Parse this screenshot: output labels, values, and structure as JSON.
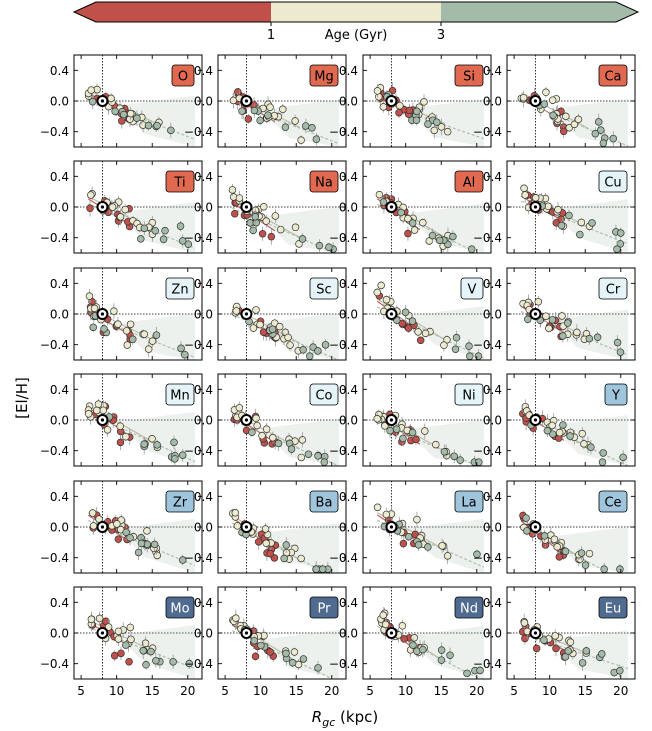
{
  "colorbar": {
    "label": "Age (Gyr)",
    "ticks": [
      "1",
      "3"
    ],
    "segments": [
      {
        "range": "< 1",
        "color": "#c0504a"
      },
      {
        "range": "1 - 3",
        "color": "#eceacf"
      },
      {
        "range": "> 3",
        "color": "#a4bba9"
      }
    ]
  },
  "xlabel": "R_gc (kpc)",
  "ylabel": "[El/H]",
  "chart_data": {
    "type": "scatter",
    "layout": "6 rows x 4 columns small multiples",
    "xlabel": "Rgc (kpc)",
    "ylabel": "[El/H]",
    "xlim": [
      4,
      22
    ],
    "ylim": [
      -0.6,
      0.6
    ],
    "xticks": [
      5,
      10,
      15,
      20
    ],
    "yticks": [
      0.4,
      0.0,
      -0.4
    ],
    "ytick_labels": [
      "0.4",
      "0.0",
      "−0.4"
    ],
    "solar_reference": {
      "Rgc": 8.0,
      "El_H": 0.0
    },
    "panels": [
      {
        "element": "O",
        "color": "#e0694f",
        "text_color": "#000000"
      },
      {
        "element": "Mg",
        "color": "#e0694f",
        "text_color": "#000000"
      },
      {
        "element": "Si",
        "color": "#e0694f",
        "text_color": "#000000"
      },
      {
        "element": "Ca",
        "color": "#e0694f",
        "text_color": "#000000"
      },
      {
        "element": "Ti",
        "color": "#e0694f",
        "text_color": "#000000"
      },
      {
        "element": "Na",
        "color": "#e0694f",
        "text_color": "#000000"
      },
      {
        "element": "Al",
        "color": "#e0694f",
        "text_color": "#000000"
      },
      {
        "element": "Cu",
        "color": "#e4f4f8",
        "text_color": "#000000"
      },
      {
        "element": "Zn",
        "color": "#e4f4f8",
        "text_color": "#000000"
      },
      {
        "element": "Sc",
        "color": "#e4f4f8",
        "text_color": "#000000"
      },
      {
        "element": "V",
        "color": "#e4f4f8",
        "text_color": "#000000"
      },
      {
        "element": "Cr",
        "color": "#e4f4f8",
        "text_color": "#000000"
      },
      {
        "element": "Mn",
        "color": "#e4f4f8",
        "text_color": "#000000"
      },
      {
        "element": "Co",
        "color": "#e4f4f8",
        "text_color": "#000000"
      },
      {
        "element": "Ni",
        "color": "#e4f4f8",
        "text_color": "#000000"
      },
      {
        "element": "Y",
        "color": "#9ec5dc",
        "text_color": "#000000"
      },
      {
        "element": "Zr",
        "color": "#9ec5dc",
        "text_color": "#000000"
      },
      {
        "element": "Ba",
        "color": "#9ec5dc",
        "text_color": "#000000"
      },
      {
        "element": "La",
        "color": "#9ec5dc",
        "text_color": "#000000"
      },
      {
        "element": "Ce",
        "color": "#9ec5dc",
        "text_color": "#000000"
      },
      {
        "element": "Mo",
        "color": "#4f6b8f",
        "text_color": "#ffffff"
      },
      {
        "element": "Pr",
        "color": "#4f6b8f",
        "text_color": "#ffffff"
      },
      {
        "element": "Nd",
        "color": "#4f6b8f",
        "text_color": "#ffffff"
      },
      {
        "element": "Eu",
        "color": "#4f6b8f",
        "text_color": "#ffffff"
      }
    ],
    "series": [
      {
        "name": "< 1 Gyr",
        "color": "#c0504a",
        "points_typical": [
          [
            6.5,
            0.05
          ],
          [
            7.2,
            -0.05
          ],
          [
            8.5,
            -0.1
          ],
          [
            9.5,
            -0.12
          ],
          [
            10.5,
            -0.15
          ],
          [
            11.5,
            -0.2
          ]
        ],
        "gradient_typical": {
          "slope": -0.06,
          "intercept_at_8": -0.02
        }
      },
      {
        "name": "1 - 3 Gyr",
        "color": "#eceacf",
        "points_typical": [
          [
            6.5,
            0.15
          ],
          [
            7.5,
            0.08
          ],
          [
            9,
            0.0
          ],
          [
            10.5,
            -0.05
          ],
          [
            12,
            -0.12
          ],
          [
            13.5,
            -0.18
          ],
          [
            15,
            -0.22
          ]
        ],
        "gradient_typical": {
          "slope": -0.05,
          "intercept_at_8": 0.03
        }
      },
      {
        "name": "> 3 Gyr",
        "color": "#a4bba9",
        "points_typical": [
          [
            7,
            0.2
          ],
          [
            9,
            -0.05
          ],
          [
            10.5,
            -0.25
          ],
          [
            12,
            -0.15
          ],
          [
            13.5,
            -0.3
          ],
          [
            16,
            -0.25
          ],
          [
            20.5,
            -0.25
          ]
        ],
        "gradient_typical": {
          "slope": -0.04,
          "intercept_at_8": -0.05
        }
      }
    ]
  }
}
